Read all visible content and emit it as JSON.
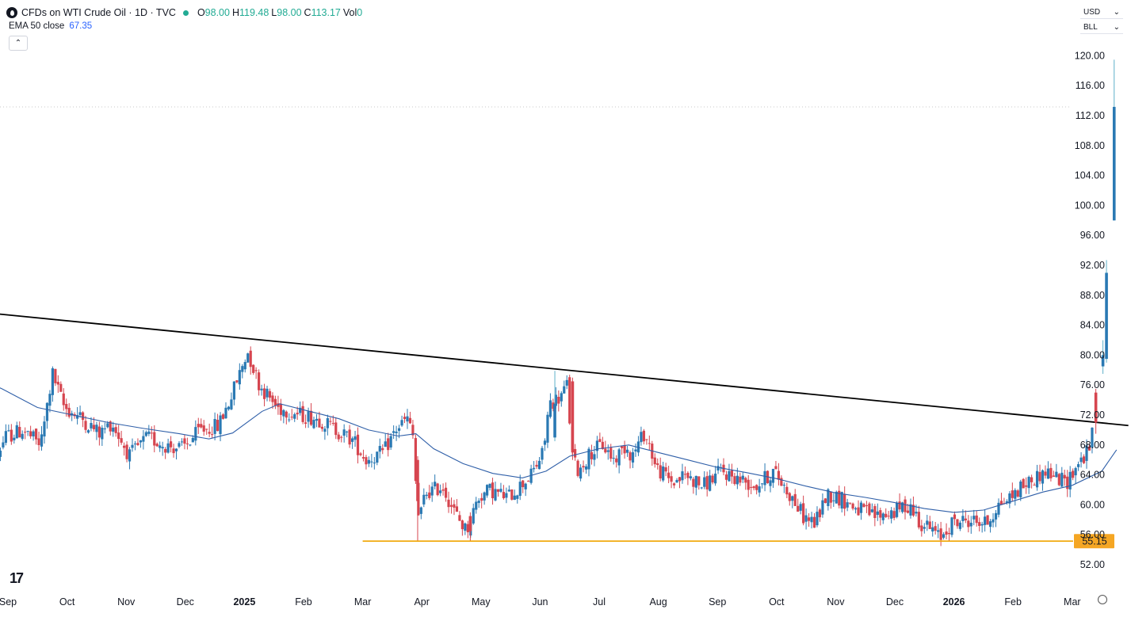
{
  "header": {
    "title": "CFDs on WTI Crude Oil · 1D · TVC",
    "ohlc": [
      {
        "key": "O",
        "value": "98.00"
      },
      {
        "key": "H",
        "value": "119.48"
      },
      {
        "key": "L",
        "value": "98.00"
      },
      {
        "key": "C",
        "value": "113.17"
      }
    ],
    "vol_label": "Vol",
    "vol_value": "0",
    "status_color": "#22ab94"
  },
  "indicator": {
    "label": "EMA 50 close",
    "value": "67.35",
    "color": "#2962ff"
  },
  "collapse_icon": "chevron-up-icon",
  "currency": {
    "value": "USD",
    "arrow": "⌄"
  },
  "unit": {
    "value": "BLL",
    "arrow": "⌄"
  },
  "colors": {
    "up": "#2a79b3",
    "down": "#d6454f",
    "ema": "#2f5fa8",
    "trendline": "#000000",
    "support": "#f0a500",
    "support_label_bg": "#f5a623",
    "last_price_line": "#c9c9c9"
  },
  "chart_data": {
    "type": "candlestick",
    "title": "CFDs on WTI Crude Oil · 1D · TVC",
    "xlabel": "",
    "ylabel": "",
    "ylim": [
      50,
      122
    ],
    "y_ticks": [
      "120.00",
      "116.00",
      "112.00",
      "108.00",
      "104.00",
      "100.00",
      "96.00",
      "92.00",
      "88.00",
      "84.00",
      "80.00",
      "76.00",
      "72.00",
      "68.00",
      "64.00",
      "60.00",
      "56.00",
      "52.00"
    ],
    "x_ticks": [
      {
        "label": "Sep",
        "t": 0.5,
        "bold": false
      },
      {
        "label": "Oct",
        "t": 1.5,
        "bold": false
      },
      {
        "label": "Nov",
        "t": 2.5,
        "bold": false
      },
      {
        "label": "Dec",
        "t": 3.5,
        "bold": false
      },
      {
        "label": "2025",
        "t": 4.5,
        "bold": true
      },
      {
        "label": "Feb",
        "t": 5.5,
        "bold": false
      },
      {
        "label": "Mar",
        "t": 6.5,
        "bold": false
      },
      {
        "label": "Apr",
        "t": 7.5,
        "bold": false
      },
      {
        "label": "May",
        "t": 8.5,
        "bold": false
      },
      {
        "label": "Jun",
        "t": 9.5,
        "bold": false
      },
      {
        "label": "Jul",
        "t": 10.5,
        "bold": false
      },
      {
        "label": "Aug",
        "t": 11.5,
        "bold": false
      },
      {
        "label": "Sep",
        "t": 12.5,
        "bold": false
      },
      {
        "label": "Oct",
        "t": 13.5,
        "bold": false
      },
      {
        "label": "Nov",
        "t": 14.5,
        "bold": false
      },
      {
        "label": "Dec",
        "t": 15.5,
        "bold": false
      },
      {
        "label": "2026",
        "t": 16.5,
        "bold": true
      },
      {
        "label": "Feb",
        "t": 17.5,
        "bold": false
      },
      {
        "label": "Mar",
        "t": 18.5,
        "bold": false
      }
    ],
    "price_path": [
      [
        0.0,
        77.0
      ],
      [
        0.2,
        71.0
      ],
      [
        0.35,
        66.5
      ],
      [
        0.5,
        69.0
      ],
      [
        0.8,
        70.0
      ],
      [
        1.1,
        68.0
      ],
      [
        1.3,
        77.5
      ],
      [
        1.5,
        73.0
      ],
      [
        1.8,
        71.5
      ],
      [
        2.1,
        69.5
      ],
      [
        2.3,
        71.0
      ],
      [
        2.6,
        66.5
      ],
      [
        2.9,
        69.0
      ],
      [
        3.2,
        68.0
      ],
      [
        3.5,
        67.5
      ],
      [
        3.8,
        70.0
      ],
      [
        4.1,
        70.5
      ],
      [
        4.3,
        74.0
      ],
      [
        4.6,
        80.5
      ],
      [
        4.8,
        76.0
      ],
      [
        5.1,
        73.0
      ],
      [
        5.5,
        72.0
      ],
      [
        5.8,
        71.5
      ],
      [
        6.1,
        70.0
      ],
      [
        6.4,
        68.5
      ],
      [
        6.6,
        66.0
      ],
      [
        6.9,
        67.0
      ],
      [
        7.1,
        70.0
      ],
      [
        7.3,
        71.5
      ],
      [
        7.4,
        69.0
      ],
      [
        7.45,
        62.0
      ],
      [
        7.5,
        57.5
      ],
      [
        7.6,
        61.5
      ],
      [
        7.9,
        62.5
      ],
      [
        8.1,
        59.0
      ],
      [
        8.3,
        56.5
      ],
      [
        8.5,
        61.0
      ],
      [
        8.7,
        62.0
      ],
      [
        9.0,
        61.0
      ],
      [
        9.2,
        62.5
      ],
      [
        9.4,
        64.0
      ],
      [
        9.6,
        67.0
      ],
      [
        9.7,
        73.5
      ],
      [
        9.9,
        74.5
      ],
      [
        10.0,
        76.0
      ],
      [
        10.1,
        66.0
      ],
      [
        10.2,
        64.5
      ],
      [
        10.4,
        67.0
      ],
      [
        10.6,
        68.0
      ],
      [
        10.8,
        66.0
      ],
      [
        11.0,
        68.0
      ],
      [
        11.1,
        66.5
      ],
      [
        11.3,
        69.5
      ],
      [
        11.4,
        68.0
      ],
      [
        11.5,
        65.0
      ],
      [
        11.8,
        63.0
      ],
      [
        12.0,
        64.0
      ],
      [
        12.3,
        62.5
      ],
      [
        12.6,
        64.5
      ],
      [
        12.9,
        63.5
      ],
      [
        13.2,
        62.5
      ],
      [
        13.5,
        64.5
      ],
      [
        13.8,
        61.0
      ],
      [
        14.0,
        58.5
      ],
      [
        14.2,
        57.5
      ],
      [
        14.4,
        61.5
      ],
      [
        14.6,
        61.0
      ],
      [
        14.9,
        59.5
      ],
      [
        15.2,
        58.5
      ],
      [
        15.5,
        59.0
      ],
      [
        15.8,
        60.0
      ],
      [
        16.0,
        57.5
      ],
      [
        16.2,
        56.5
      ],
      [
        16.3,
        55.5
      ],
      [
        16.5,
        57.5
      ],
      [
        16.8,
        58.0
      ],
      [
        17.1,
        57.5
      ],
      [
        17.3,
        60.0
      ],
      [
        17.5,
        61.0
      ],
      [
        17.7,
        62.5
      ],
      [
        17.9,
        63.5
      ],
      [
        18.1,
        64.5
      ],
      [
        18.3,
        63.5
      ],
      [
        18.45,
        63.0
      ],
      [
        18.6,
        65.0
      ],
      [
        18.75,
        66.5
      ],
      [
        18.85,
        67.5
      ],
      [
        18.95,
        74.0
      ],
      [
        19.0,
        78.0
      ],
      [
        19.08,
        91.0
      ]
    ],
    "highlight_candles": [
      {
        "t": 7.43,
        "open": 66.0,
        "high": 66.5,
        "low": 55.15,
        "close": 60.5
      },
      {
        "t": 8.32,
        "open": 58.5,
        "high": 59.0,
        "low": 55.2,
        "close": 56.5
      },
      {
        "t": 9.75,
        "open": 69.0,
        "high": 77.9,
        "low": 68.5,
        "close": 73.5
      },
      {
        "t": 10.05,
        "open": 76.5,
        "high": 77.0,
        "low": 66.0,
        "close": 67.0
      },
      {
        "t": 18.9,
        "open": 75.0,
        "high": 75.5,
        "low": 69.5,
        "close": 71.0
      },
      {
        "t": 19.02,
        "open": 78.5,
        "high": 82.0,
        "low": 77.5,
        "close": 80.0
      },
      {
        "t": 19.08,
        "open": 79.5,
        "high": 92.7,
        "low": 79.0,
        "close": 91.0
      },
      {
        "t": 19.21,
        "open": 98.0,
        "high": 119.48,
        "low": 98.0,
        "close": 113.17
      }
    ],
    "ema_path": [
      [
        0.0,
        77.0
      ],
      [
        0.4,
        75.5
      ],
      [
        1.0,
        73.0
      ],
      [
        1.6,
        72.0
      ],
      [
        2.2,
        71.0
      ],
      [
        2.8,
        70.2
      ],
      [
        3.4,
        69.5
      ],
      [
        3.9,
        68.8
      ],
      [
        4.3,
        69.6
      ],
      [
        4.8,
        72.5
      ],
      [
        5.1,
        73.5
      ],
      [
        5.6,
        72.5
      ],
      [
        6.1,
        71.5
      ],
      [
        6.6,
        70.0
      ],
      [
        7.1,
        69.2
      ],
      [
        7.4,
        69.5
      ],
      [
        7.7,
        67.5
      ],
      [
        8.2,
        65.5
      ],
      [
        8.7,
        64.2
      ],
      [
        9.2,
        63.6
      ],
      [
        9.6,
        64.5
      ],
      [
        10.0,
        66.5
      ],
      [
        10.5,
        67.5
      ],
      [
        11.0,
        68.0
      ],
      [
        11.5,
        67.0
      ],
      [
        12.0,
        66.0
      ],
      [
        12.5,
        65.0
      ],
      [
        13.0,
        64.3
      ],
      [
        13.5,
        63.5
      ],
      [
        14.0,
        62.5
      ],
      [
        14.5,
        61.6
      ],
      [
        15.0,
        61.0
      ],
      [
        15.5,
        60.3
      ],
      [
        16.0,
        59.5
      ],
      [
        16.5,
        59.0
      ],
      [
        17.0,
        59.3
      ],
      [
        17.5,
        60.5
      ],
      [
        18.0,
        61.7
      ],
      [
        18.5,
        62.6
      ],
      [
        19.0,
        64.5
      ],
      [
        19.25,
        67.35
      ]
    ],
    "trendline": [
      [
        -0.05,
        85.8
      ],
      [
        19.45,
        70.6
      ]
    ],
    "support_line": {
      "value": 55.15,
      "from_t": 6.5,
      "label": "55.15"
    },
    "last_price": {
      "value": 113.17
    }
  }
}
